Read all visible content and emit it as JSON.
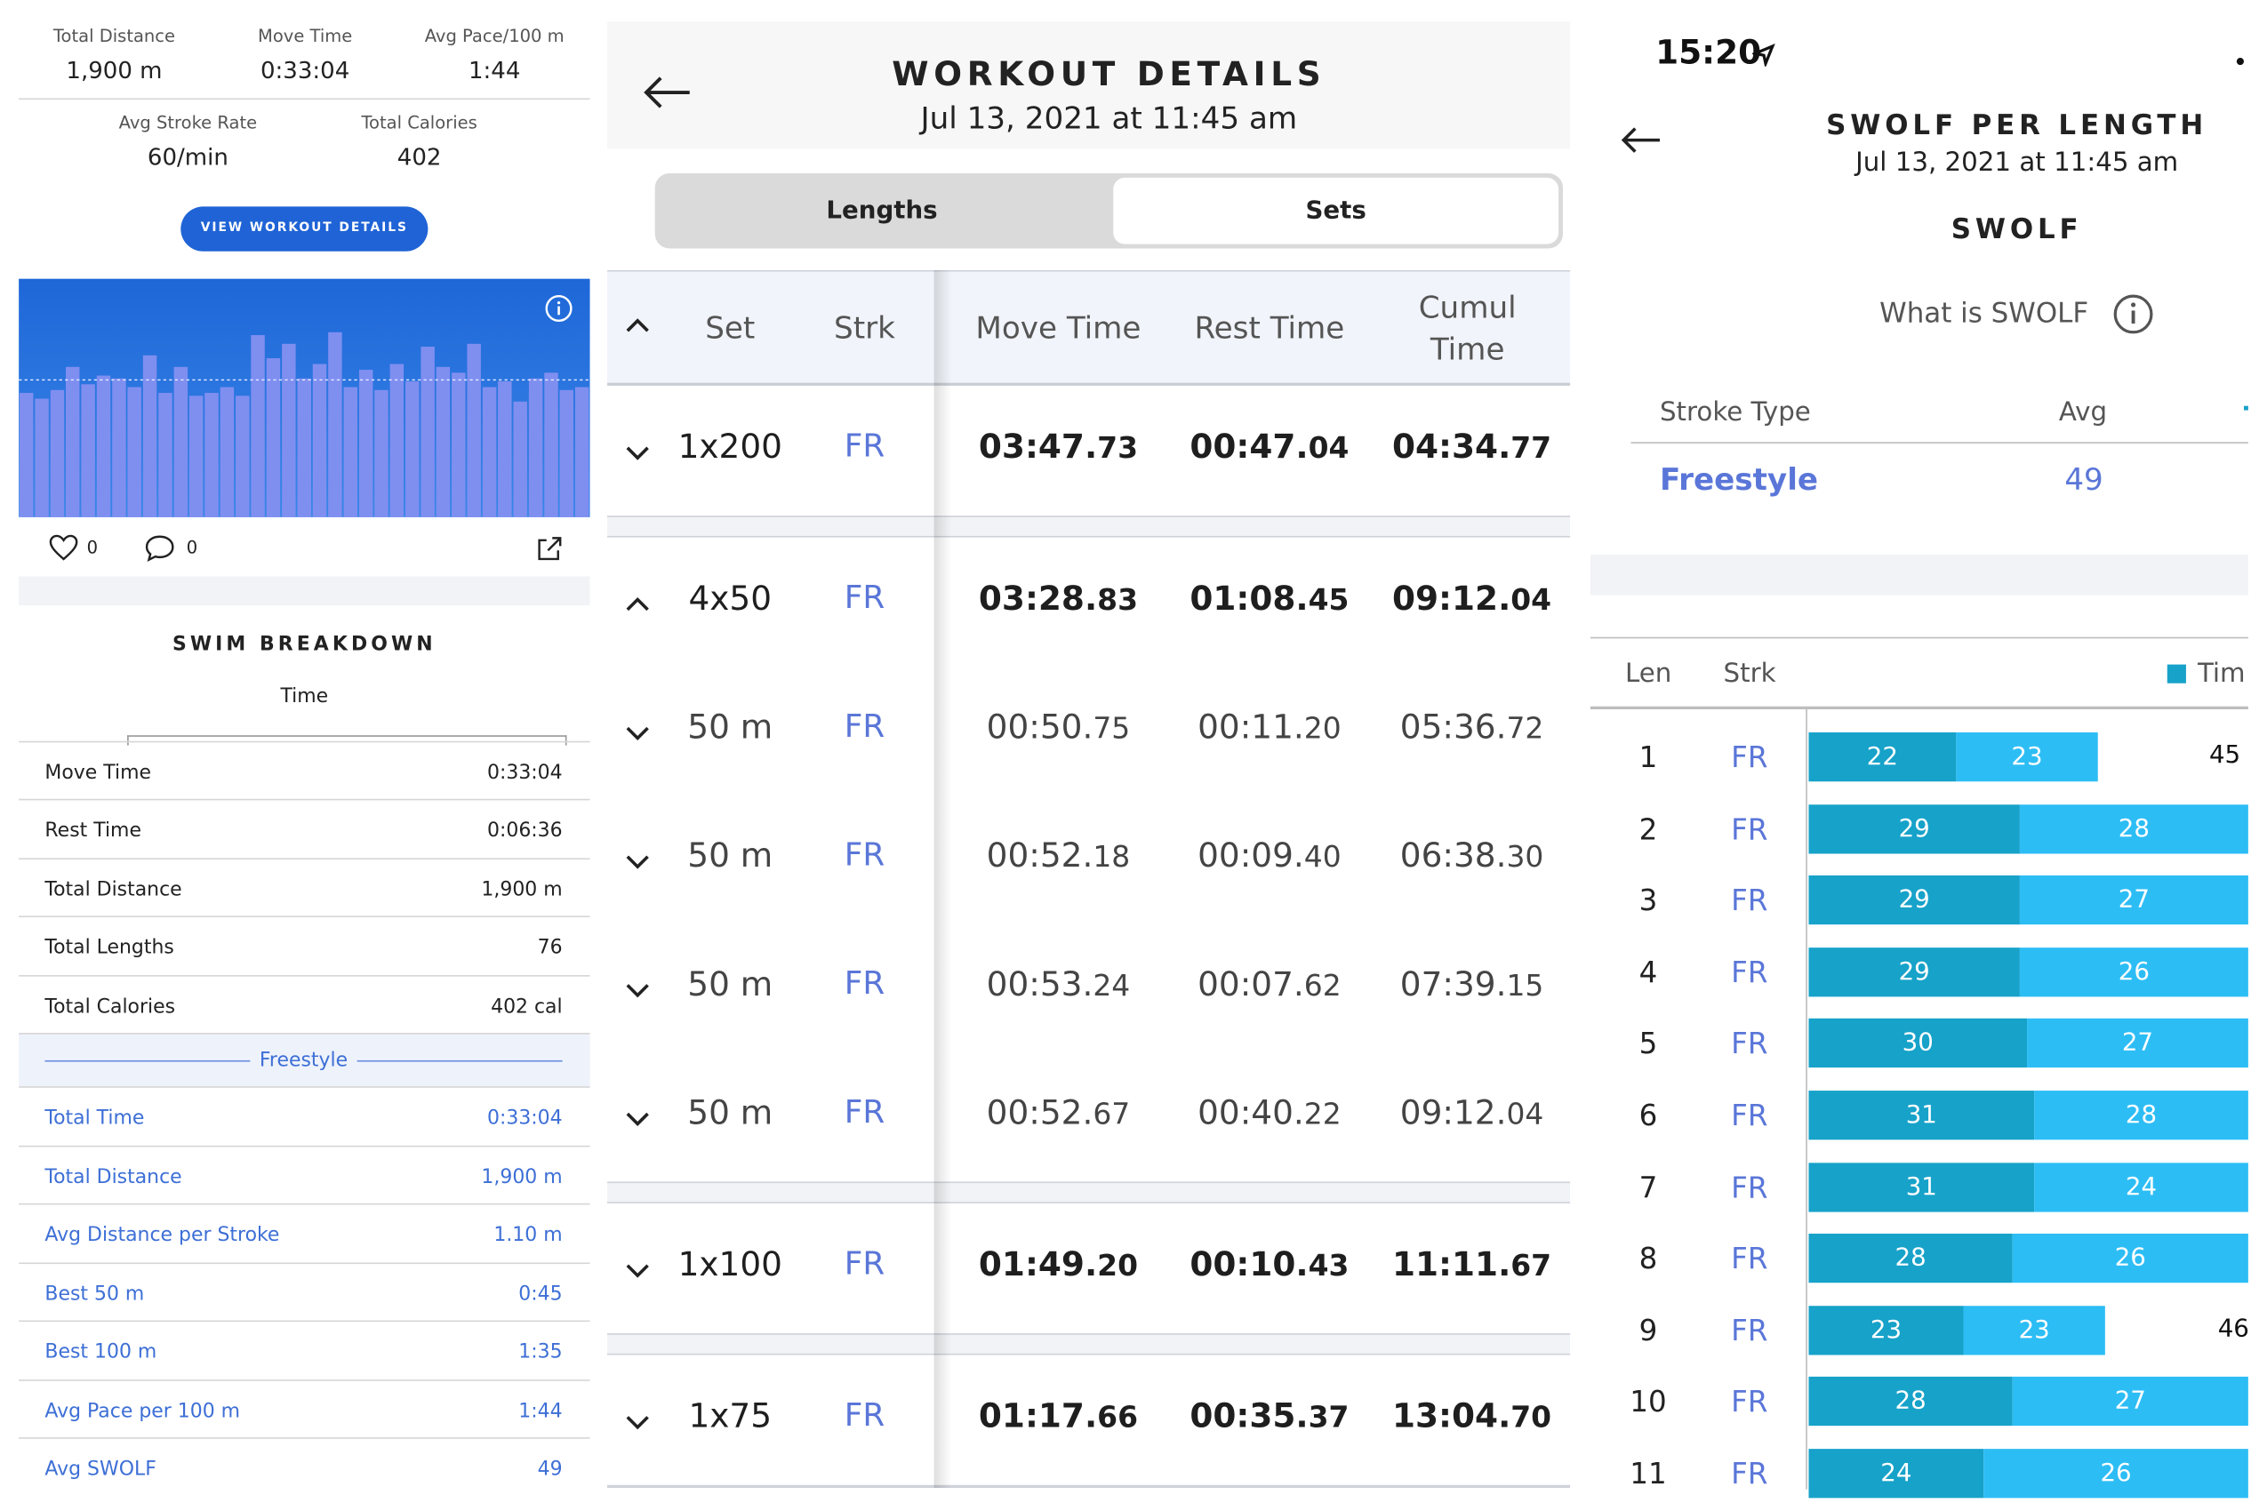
{
  "summary": {
    "stats": [
      {
        "label": "Total Distance",
        "value": "1,900 m"
      },
      {
        "label": "Move Time",
        "value": "0:33:04"
      },
      {
        "label": "Avg Pace/100 m",
        "value": "1:44"
      },
      {
        "label": "Avg Stroke Rate",
        "value": "60/min"
      },
      {
        "label": "Total Calories",
        "value": "402"
      }
    ],
    "view_button": "VIEW WORKOUT DETAILS",
    "like_count": "0",
    "comment_count": "0"
  },
  "breakdown": {
    "title": "SWIM BREAKDOWN",
    "tab": "Time",
    "rows": [
      {
        "label": "Move Time",
        "value": "0:33:04"
      },
      {
        "label": "Rest Time",
        "value": "0:06:36"
      },
      {
        "label": "Total Distance",
        "value": "1,900 m"
      },
      {
        "label": "Total Lengths",
        "value": "76"
      },
      {
        "label": "Total Calories",
        "value": "402 cal"
      }
    ],
    "section": "Freestyle",
    "stroke_rows": [
      {
        "label": "Total Time",
        "value": "0:33:04"
      },
      {
        "label": "Total Distance",
        "value": "1,900 m"
      },
      {
        "label": "Avg Distance per Stroke",
        "value": "1.10 m"
      },
      {
        "label": "Best 50 m",
        "value": "0:45"
      },
      {
        "label": "Best 100 m",
        "value": "1:35"
      },
      {
        "label": "Avg Pace per 100 m",
        "value": "1:44"
      },
      {
        "label": "Avg SWOLF",
        "value": "49"
      }
    ]
  },
  "workout": {
    "title": "WORKOUT DETAILS",
    "date": "Jul 13, 2021 at 11:45 am",
    "tabs": [
      "Lengths",
      "Sets"
    ],
    "headers": {
      "set": "Set",
      "strk": "Strk",
      "move": "Move Time",
      "rest": "Rest Time",
      "cumul1": "Cumul",
      "cumul2": "Time"
    },
    "sets": [
      {
        "set": "1x200",
        "strk": "FR",
        "move": "03:47.",
        "move_f": "73",
        "rest": "00:47.",
        "rest_f": "04",
        "cumul": "04:34.",
        "cumul_f": "77"
      },
      {
        "set": "4x50",
        "strk": "FR",
        "move": "03:28.",
        "move_f": "83",
        "rest": "01:08.",
        "rest_f": "45",
        "cumul": "09:12.",
        "cumul_f": "04"
      },
      {
        "set": "50 m",
        "strk": "FR",
        "move": "00:50.",
        "move_f": "75",
        "rest": "00:11.",
        "rest_f": "20",
        "cumul": "05:36.",
        "cumul_f": "72"
      },
      {
        "set": "50 m",
        "strk": "FR",
        "move": "00:52.",
        "move_f": "18",
        "rest": "00:09.",
        "rest_f": "40",
        "cumul": "06:38.",
        "cumul_f": "30"
      },
      {
        "set": "50 m",
        "strk": "FR",
        "move": "00:53.",
        "move_f": "24",
        "rest": "00:07.",
        "rest_f": "62",
        "cumul": "07:39.",
        "cumul_f": "15"
      },
      {
        "set": "50 m",
        "strk": "FR",
        "move": "00:52.",
        "move_f": "67",
        "rest": "00:40.",
        "rest_f": "22",
        "cumul": "09:12.",
        "cumul_f": "04"
      },
      {
        "set": "1x100",
        "strk": "FR",
        "move": "01:49.",
        "move_f": "20",
        "rest": "00:10.",
        "rest_f": "43",
        "cumul": "11:11.",
        "cumul_f": "67"
      },
      {
        "set": "1x75",
        "strk": "FR",
        "move": "01:17.",
        "move_f": "66",
        "rest": "00:35.",
        "rest_f": "37",
        "cumul": "13:04.",
        "cumul_f": "70"
      }
    ]
  },
  "swolf": {
    "status_time": "15:20",
    "title": "SWOLF PER LENGTH",
    "date": "Jul 13, 2021 at 11:45 am",
    "heading": "SWOLF",
    "what_is": "What is SWOLF",
    "table_headers": {
      "stroke": "Stroke Type",
      "avg": "Avg"
    },
    "stroke_name": "Freestyle",
    "stroke_avg": "49",
    "len_headers": {
      "len": "Len",
      "strk": "Strk",
      "legend": "Tim"
    },
    "colors": {
      "time_segment": "#17a2c9",
      "stroke_segment": "#2dbdf5",
      "accent": "#5a76d8"
    }
  },
  "chart_data": {
    "type": "bar",
    "title": "SWOLF PER LENGTH",
    "categories": [
      "1",
      "2",
      "3",
      "4",
      "5",
      "6",
      "7",
      "8",
      "9",
      "10",
      "11"
    ],
    "series": [
      {
        "values": [
          22,
          29,
          29,
          29,
          30,
          31,
          31,
          28,
          23,
          28,
          24
        ]
      },
      {
        "values": [
          23,
          28,
          27,
          26,
          27,
          28,
          24,
          26,
          23,
          27,
          26
        ]
      }
    ],
    "totals": [
      {
        "len": "1",
        "total": "45"
      },
      {
        "len": "9",
        "total": "46"
      }
    ],
    "stroke": "FR",
    "stacked": true,
    "orientation": "horizontal"
  }
}
